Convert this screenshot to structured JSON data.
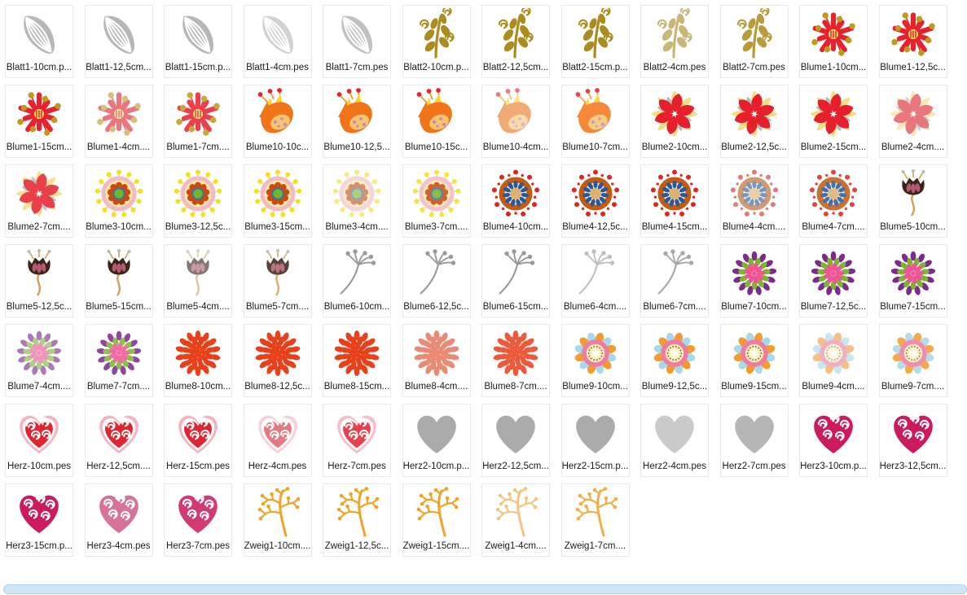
{
  "colors": {
    "background": "#ffffff",
    "tile_border": "#e9e9e9",
    "label_text": "#1b1b1b",
    "scrollbar_fill": "#cde6f7",
    "scrollbar_border": "#aed2ec"
  },
  "icons": {
    "blatt1": {
      "name": "striped-leaf-icon",
      "colors": {
        "leaf": "#b7b7b7",
        "vein": "#ffffff"
      }
    },
    "blatt2": {
      "name": "curled-branch-icon",
      "colors": {
        "branch": "#ac8c1e"
      }
    },
    "blume1": {
      "name": "splat-flower-icon",
      "colors": {
        "petal": "#e8212e",
        "dot": "#bf9a1c",
        "center": "#f3e468"
      }
    },
    "blume2": {
      "name": "pinwheel-flower-icon",
      "colors": {
        "outer": "#f6dc82",
        "mid": "#bababa",
        "inner": "#e5202c"
      }
    },
    "blume3": {
      "name": "dotted-ring-flower-icon",
      "colors": {
        "dots": "#f3e11c",
        "ring": "#f3b9c6",
        "fill": "#fae8a6",
        "flower": "#c94a10",
        "blue": "#3077ad",
        "green": "#74b62a"
      }
    },
    "blume4": {
      "name": "mosaic-ring-flower-icon",
      "colors": {
        "dots": "#e02520",
        "ring": "#c35b12",
        "petal": "#29599b",
        "center": "#ddb170",
        "fill": "#f7f3ea"
      }
    },
    "blume5": {
      "name": "tulip-bud-icon",
      "colors": {
        "bud": "#38261a",
        "petal": "#b55a70",
        "stem": "#cfa055",
        "tip": "#b9b9b9"
      }
    },
    "blume6": {
      "name": "seed-umbel-icon",
      "colors": {
        "stem": "#9a9a9a"
      }
    },
    "blume7": {
      "name": "mum-flower-purple-icon",
      "colors": {
        "outer": "#7c2a8c",
        "mid": "#7bb62e",
        "inner": "#ee5596"
      }
    },
    "blume8": {
      "name": "mum-flower-red-icon",
      "colors": {
        "petal": "#e8401a"
      }
    },
    "blume9": {
      "name": "pastel-ring-flower-icon",
      "colors": {
        "petalA": "#f59b2e",
        "petalB": "#a8d8e9",
        "ring": "#ee7ba2",
        "fill": "#f9efad",
        "dots": "#7d3f92",
        "star": "#ffffff"
      }
    },
    "blume10": {
      "name": "flame-tulip-icon",
      "colors": {
        "petal": "#f07518",
        "accent": "#fdd22e",
        "dot": "#e82330",
        "pod": "#f6c46e",
        "seed": "#c08ac2",
        "stalk": "#e89b28"
      }
    },
    "herz": {
      "name": "swirl-heart-red-icon",
      "colors": {
        "outer": "#f6b3bf",
        "mid": "#ffffff",
        "heart": "#e02531",
        "swirl": "#ffffff"
      }
    },
    "herz2": {
      "name": "plain-heart-gray-icon",
      "colors": {
        "heart": "#ababab"
      }
    },
    "herz3": {
      "name": "swirl-heart-magenta-icon",
      "colors": {
        "heart": "#cb1a5e",
        "swirl": "#ffffff"
      }
    },
    "zweig1": {
      "name": "berry-twig-icon",
      "colors": {
        "twig": "#f2a227"
      }
    }
  },
  "files": [
    {
      "label": "Blatt1-10cm.p...",
      "icon": "blatt1",
      "variant": "solid"
    },
    {
      "label": "Blatt1-12,5cm...",
      "icon": "blatt1",
      "variant": "solid"
    },
    {
      "label": "Blatt1-15cm.p...",
      "icon": "blatt1",
      "variant": "solid"
    },
    {
      "label": "Blatt1-4cm.pes",
      "icon": "blatt1",
      "variant": "light"
    },
    {
      "label": "Blatt1-7cm.pes",
      "icon": "blatt1",
      "variant": "medium"
    },
    {
      "label": "Blatt2-10cm.p...",
      "icon": "blatt2",
      "variant": "solid"
    },
    {
      "label": "Blatt2-12,5cm...",
      "icon": "blatt2",
      "variant": "solid"
    },
    {
      "label": "Blatt2-15cm.p...",
      "icon": "blatt2",
      "variant": "solid"
    },
    {
      "label": "Blatt2-4cm.pes",
      "icon": "blatt2",
      "variant": "light"
    },
    {
      "label": "Blatt2-7cm.pes",
      "icon": "blatt2",
      "variant": "medium"
    },
    {
      "label": "Blume1-10cm...",
      "icon": "blume1",
      "variant": "solid"
    },
    {
      "label": "Blume1-12,5c...",
      "icon": "blume1",
      "variant": "solid"
    },
    {
      "label": "Blume1-15cm...",
      "icon": "blume1",
      "variant": "solid"
    },
    {
      "label": "Blume1-4cm....",
      "icon": "blume1",
      "variant": "light"
    },
    {
      "label": "Blume1-7cm....",
      "icon": "blume1",
      "variant": "medium"
    },
    {
      "label": "Blume10-10c...",
      "icon": "blume10",
      "variant": "solid"
    },
    {
      "label": "Blume10-12,5...",
      "icon": "blume10",
      "variant": "solid"
    },
    {
      "label": "Blume10-15c...",
      "icon": "blume10",
      "variant": "solid"
    },
    {
      "label": "Blume10-4cm...",
      "icon": "blume10",
      "variant": "light"
    },
    {
      "label": "Blume10-7cm...",
      "icon": "blume10",
      "variant": "medium"
    },
    {
      "label": "Blume2-10cm...",
      "icon": "blume2",
      "variant": "solid"
    },
    {
      "label": "Blume2-12,5c...",
      "icon": "blume2",
      "variant": "solid"
    },
    {
      "label": "Blume2-15cm...",
      "icon": "blume2",
      "variant": "solid"
    },
    {
      "label": "Blume2-4cm....",
      "icon": "blume2",
      "variant": "light"
    },
    {
      "label": "Blume2-7cm....",
      "icon": "blume2",
      "variant": "medium"
    },
    {
      "label": "Blume3-10cm...",
      "icon": "blume3",
      "variant": "solid"
    },
    {
      "label": "Blume3-12,5c...",
      "icon": "blume3",
      "variant": "solid"
    },
    {
      "label": "Blume3-15cm...",
      "icon": "blume3",
      "variant": "solid"
    },
    {
      "label": "Blume3-4cm....",
      "icon": "blume3",
      "variant": "light"
    },
    {
      "label": "Blume3-7cm....",
      "icon": "blume3",
      "variant": "medium"
    },
    {
      "label": "Blume4-10cm...",
      "icon": "blume4",
      "variant": "solid"
    },
    {
      "label": "Blume4-12,5c...",
      "icon": "blume4",
      "variant": "solid"
    },
    {
      "label": "Blume4-15cm...",
      "icon": "blume4",
      "variant": "solid"
    },
    {
      "label": "Blume4-4cm....",
      "icon": "blume4",
      "variant": "light"
    },
    {
      "label": "Blume4-7cm....",
      "icon": "blume4",
      "variant": "medium"
    },
    {
      "label": "Blume5-10cm...",
      "icon": "blume5",
      "variant": "solid"
    },
    {
      "label": "Blume5-12,5c...",
      "icon": "blume5",
      "variant": "solid"
    },
    {
      "label": "Blume5-15cm...",
      "icon": "blume5",
      "variant": "solid"
    },
    {
      "label": "Blume5-4cm....",
      "icon": "blume5",
      "variant": "light"
    },
    {
      "label": "Blume5-7cm....",
      "icon": "blume5",
      "variant": "medium"
    },
    {
      "label": "Blume6-10cm...",
      "icon": "blume6",
      "variant": "solid"
    },
    {
      "label": "Blume6-12,5c...",
      "icon": "blume6",
      "variant": "solid"
    },
    {
      "label": "Blume6-15cm...",
      "icon": "blume6",
      "variant": "solid"
    },
    {
      "label": "Blume6-4cm....",
      "icon": "blume6",
      "variant": "light"
    },
    {
      "label": "Blume6-7cm....",
      "icon": "blume6",
      "variant": "medium"
    },
    {
      "label": "Blume7-10cm...",
      "icon": "blume7",
      "variant": "solid"
    },
    {
      "label": "Blume7-12,5c...",
      "icon": "blume7",
      "variant": "solid"
    },
    {
      "label": "Blume7-15cm...",
      "icon": "blume7",
      "variant": "solid"
    },
    {
      "label": "Blume7-4cm....",
      "icon": "blume7",
      "variant": "light"
    },
    {
      "label": "Blume7-7cm....",
      "icon": "blume7",
      "variant": "medium"
    },
    {
      "label": "Blume8-10cm...",
      "icon": "blume8",
      "variant": "solid"
    },
    {
      "label": "Blume8-12,5c...",
      "icon": "blume8",
      "variant": "solid"
    },
    {
      "label": "Blume8-15cm...",
      "icon": "blume8",
      "variant": "solid"
    },
    {
      "label": "Blume8-4cm....",
      "icon": "blume8",
      "variant": "light"
    },
    {
      "label": "Blume8-7cm....",
      "icon": "blume8",
      "variant": "medium"
    },
    {
      "label": "Blume9-10cm...",
      "icon": "blume9",
      "variant": "solid"
    },
    {
      "label": "Blume9-12,5c...",
      "icon": "blume9",
      "variant": "solid"
    },
    {
      "label": "Blume9-15cm...",
      "icon": "blume9",
      "variant": "solid"
    },
    {
      "label": "Blume9-4cm....",
      "icon": "blume9",
      "variant": "light"
    },
    {
      "label": "Blume9-7cm....",
      "icon": "blume9",
      "variant": "medium"
    },
    {
      "label": "Herz-10cm.pes",
      "icon": "herz",
      "variant": "solid"
    },
    {
      "label": "Herz-12,5cm....",
      "icon": "herz",
      "variant": "solid"
    },
    {
      "label": "Herz-15cm.pes",
      "icon": "herz",
      "variant": "solid"
    },
    {
      "label": "Herz-4cm.pes",
      "icon": "herz",
      "variant": "light"
    },
    {
      "label": "Herz-7cm.pes",
      "icon": "herz",
      "variant": "medium"
    },
    {
      "label": "Herz2-10cm.p...",
      "icon": "herz2",
      "variant": "solid"
    },
    {
      "label": "Herz2-12,5cm...",
      "icon": "herz2",
      "variant": "solid"
    },
    {
      "label": "Herz2-15cm.p...",
      "icon": "herz2",
      "variant": "solid"
    },
    {
      "label": "Herz2-4cm.pes",
      "icon": "herz2",
      "variant": "light"
    },
    {
      "label": "Herz2-7cm.pes",
      "icon": "herz2",
      "variant": "medium"
    },
    {
      "label": "Herz3-10cm.p...",
      "icon": "herz3",
      "variant": "solid"
    },
    {
      "label": "Herz3-12,5cm...",
      "icon": "herz3",
      "variant": "solid"
    },
    {
      "label": "Herz3-15cm.p...",
      "icon": "herz3",
      "variant": "solid"
    },
    {
      "label": "Herz3-4cm.pes",
      "icon": "herz3",
      "variant": "light"
    },
    {
      "label": "Herz3-7cm.pes",
      "icon": "herz3",
      "variant": "medium"
    },
    {
      "label": "Zweig1-10cm....",
      "icon": "zweig1",
      "variant": "solid"
    },
    {
      "label": "Zweig1-12,5c...",
      "icon": "zweig1",
      "variant": "solid"
    },
    {
      "label": "Zweig1-15cm....",
      "icon": "zweig1",
      "variant": "solid"
    },
    {
      "label": "Zweig1-4cm....",
      "icon": "zweig1",
      "variant": "light"
    },
    {
      "label": "Zweig1-7cm....",
      "icon": "zweig1",
      "variant": "medium"
    }
  ],
  "scrollbar": {
    "orientation": "horizontal"
  }
}
